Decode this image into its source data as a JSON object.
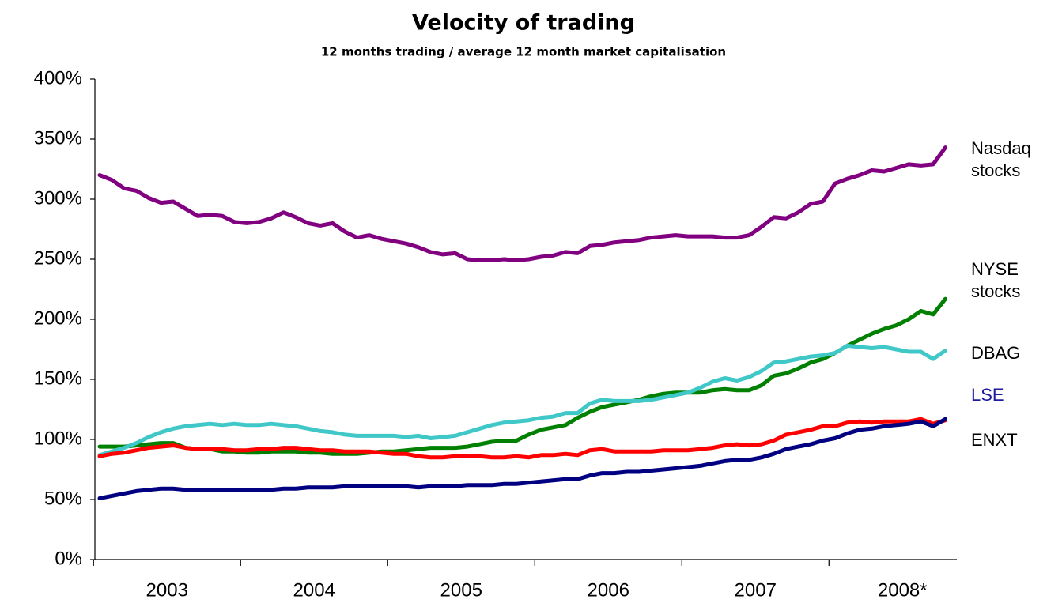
{
  "chart_data": {
    "type": "line",
    "title": "Velocity of trading",
    "subtitle": "12 months trading / average 12 month market capitalisation",
    "categories": [
      null,
      null,
      null,
      null,
      null,
      null,
      "2003",
      null,
      null,
      null,
      null,
      null,
      null,
      null,
      null,
      null,
      null,
      null,
      "2004",
      null,
      null,
      null,
      null,
      null,
      null,
      null,
      null,
      null,
      null,
      null,
      "2005",
      null,
      null,
      null,
      null,
      null,
      null,
      null,
      null,
      null,
      null,
      null,
      "2006",
      null,
      null,
      null,
      null,
      null,
      null,
      null,
      null,
      null,
      null,
      null,
      "2007",
      null,
      null,
      null,
      null,
      null,
      null,
      null,
      null,
      null,
      null,
      null,
      "2008*",
      null,
      null,
      null
    ],
    "ylim": [
      0,
      400
    ],
    "yticks": [
      {
        "value": 0,
        "label": "0%"
      },
      {
        "value": 50,
        "label": "50%"
      },
      {
        "value": 100,
        "label": "100%"
      },
      {
        "value": 150,
        "label": "150%"
      },
      {
        "value": 200,
        "label": "200%"
      },
      {
        "value": 250,
        "label": "250%"
      },
      {
        "value": 300,
        "label": "300%"
      },
      {
        "value": 350,
        "label": "350%"
      },
      {
        "value": 400,
        "label": "400%"
      }
    ],
    "grid": false,
    "series": [
      {
        "name": "Nasdaq stocks",
        "color": "#800080",
        "label_color": "#000000",
        "values": [
          320,
          316,
          309,
          307,
          301,
          297,
          298,
          292,
          286,
          287,
          286,
          281,
          280,
          281,
          284,
          289,
          285,
          280,
          278,
          280,
          273,
          268,
          270,
          267,
          265,
          263,
          260,
          256,
          254,
          255,
          250,
          249,
          249,
          250,
          249,
          250,
          252,
          253,
          256,
          255,
          261,
          262,
          264,
          265,
          266,
          268,
          269,
          270,
          269,
          269,
          269,
          268,
          268,
          270,
          277,
          285,
          284,
          289,
          296,
          298,
          313,
          317,
          320,
          324,
          323,
          326,
          329,
          328,
          329,
          343
        ]
      },
      {
        "name": "NYSE stocks",
        "color": "#008000",
        "label_color": "#000000",
        "values": [
          94,
          94,
          94,
          95,
          96,
          97,
          97,
          93,
          92,
          92,
          90,
          90,
          89,
          89,
          90,
          90,
          90,
          89,
          89,
          88,
          88,
          88,
          89,
          90,
          90,
          91,
          92,
          93,
          93,
          93,
          94,
          96,
          98,
          99,
          99,
          104,
          108,
          110,
          112,
          118,
          123,
          127,
          129,
          131,
          133,
          136,
          138,
          139,
          139,
          139,
          141,
          142,
          141,
          141,
          145,
          153,
          155,
          159,
          164,
          167,
          172,
          178,
          183,
          188,
          192,
          195,
          200,
          207,
          204,
          217
        ]
      },
      {
        "name": "DBAG",
        "color": "#40c8c8",
        "label_color": "#000000",
        "values": [
          87,
          90,
          93,
          97,
          102,
          106,
          109,
          111,
          112,
          113,
          112,
          113,
          112,
          112,
          113,
          112,
          111,
          109,
          107,
          106,
          104,
          103,
          103,
          103,
          103,
          102,
          103,
          101,
          102,
          103,
          106,
          109,
          112,
          114,
          115,
          116,
          118,
          119,
          122,
          122,
          130,
          133,
          132,
          132,
          132,
          133,
          135,
          137,
          139,
          143,
          148,
          151,
          149,
          152,
          157,
          164,
          165,
          167,
          169,
          170,
          172,
          178,
          177,
          176,
          177,
          175,
          173,
          173,
          167,
          174
        ]
      },
      {
        "name": "LSE",
        "color": "#ff0000",
        "label_color": "#1c1c9c",
        "values": [
          86,
          88,
          89,
          91,
          93,
          94,
          95,
          93,
          92,
          92,
          92,
          91,
          91,
          92,
          92,
          93,
          93,
          92,
          91,
          91,
          90,
          90,
          90,
          89,
          88,
          88,
          86,
          85,
          85,
          86,
          86,
          86,
          85,
          85,
          86,
          85,
          87,
          87,
          88,
          87,
          91,
          92,
          90,
          90,
          90,
          90,
          91,
          91,
          91,
          92,
          93,
          95,
          96,
          95,
          96,
          99,
          104,
          106,
          108,
          111,
          111,
          114,
          115,
          114,
          115,
          115,
          115,
          117,
          113,
          116
        ]
      },
      {
        "name": "ENXT",
        "color": "#000080",
        "label_color": "#000000",
        "values": [
          51,
          53,
          55,
          57,
          58,
          59,
          59,
          58,
          58,
          58,
          58,
          58,
          58,
          58,
          58,
          59,
          59,
          60,
          60,
          60,
          61,
          61,
          61,
          61,
          61,
          61,
          60,
          61,
          61,
          61,
          62,
          62,
          62,
          63,
          63,
          64,
          65,
          66,
          67,
          67,
          70,
          72,
          72,
          73,
          73,
          74,
          75,
          76,
          77,
          78,
          80,
          82,
          83,
          83,
          85,
          88,
          92,
          94,
          96,
          99,
          101,
          105,
          108,
          109,
          111,
          112,
          113,
          115,
          111,
          117
        ]
      }
    ]
  }
}
